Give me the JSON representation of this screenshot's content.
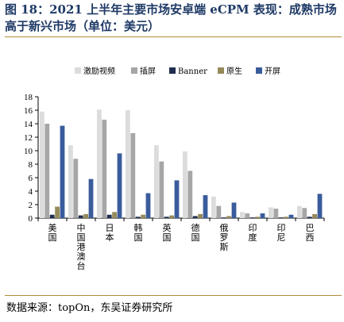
{
  "figure": {
    "title": "图 18：2021 上半年主要市场安卓端 eCPM 表现：成熟市场高于新兴市场（单位：美元）",
    "source": "数据来源：topOn，东吴证券研究所"
  },
  "colors": {
    "rule": "#b08a3a",
    "title": "#1f3a66"
  },
  "chart_data": {
    "type": "bar",
    "categories": [
      "美国",
      "中国港澳台",
      "日本",
      "韩国",
      "英国",
      "德国",
      "俄罗斯",
      "印度",
      "印尼",
      "巴西"
    ],
    "series": [
      {
        "name": "激励视频",
        "color": "#dcdcdc",
        "values": [
          15.8,
          10.8,
          16.1,
          16.0,
          10.8,
          9.9,
          3.2,
          0.9,
          1.6,
          1.8
        ]
      },
      {
        "name": "插屏",
        "color": "#a6a6a6",
        "values": [
          14.0,
          8.8,
          14.6,
          12.6,
          8.4,
          7.0,
          1.8,
          0.7,
          1.4,
          1.5
        ]
      },
      {
        "name": "Banner",
        "color": "#1f2d50",
        "values": [
          0.5,
          0.4,
          0.5,
          0.2,
          0.2,
          0.3,
          0.1,
          0.1,
          0.1,
          0.2
        ]
      },
      {
        "name": "原生",
        "color": "#968a5a",
        "values": [
          1.7,
          0.6,
          0.9,
          0.5,
          0.4,
          0.6,
          0.3,
          0.2,
          0.2,
          0.6
        ]
      },
      {
        "name": "开屏",
        "color": "#3a5c9c",
        "values": [
          13.7,
          5.8,
          9.6,
          3.7,
          5.6,
          3.4,
          2.3,
          0.7,
          0.5,
          3.6
        ]
      }
    ],
    "yticks": [
      0,
      2,
      4,
      6,
      8,
      10,
      12,
      14,
      16,
      18
    ],
    "ylim": [
      0,
      18
    ],
    "legend": "top",
    "grid": false
  }
}
